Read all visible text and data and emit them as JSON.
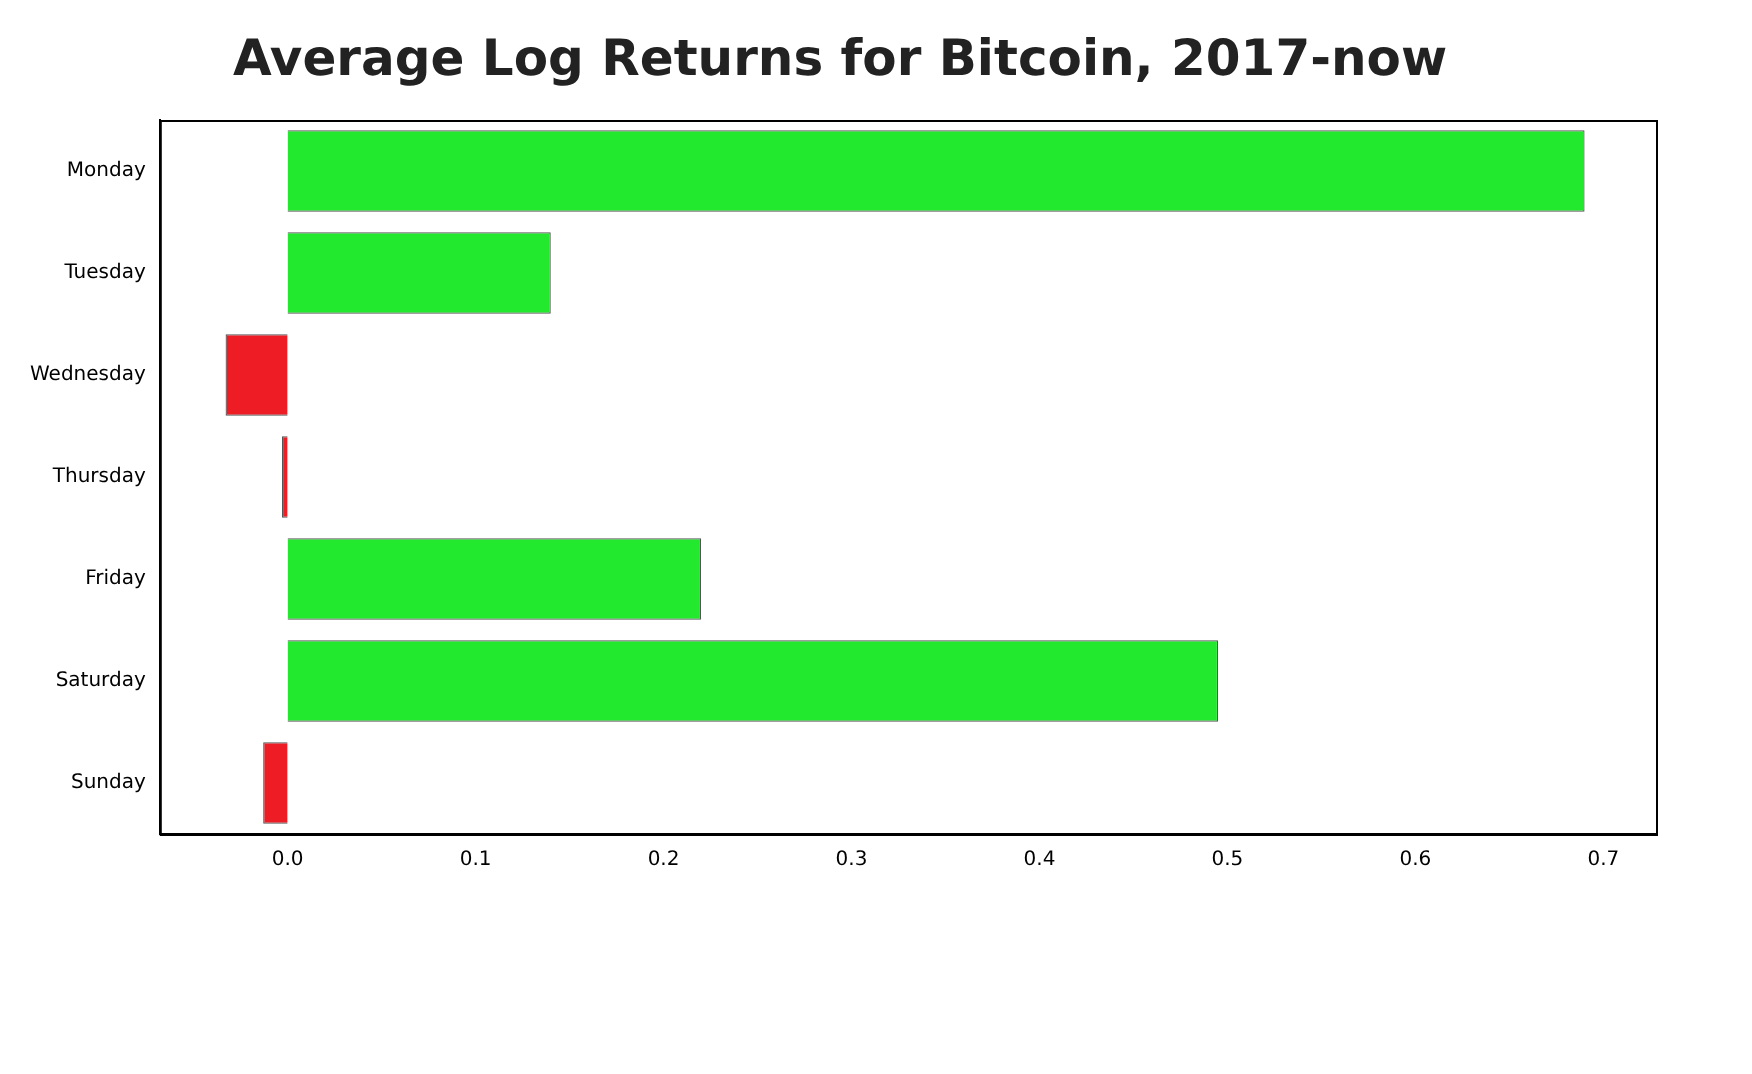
{
  "chart_data": {
    "type": "bar",
    "orientation": "horizontal",
    "title": "Average Log Returns for Bitcoin, 2017-now",
    "categories": [
      "Monday",
      "Tuesday",
      "Wednesday",
      "Thursday",
      "Friday",
      "Saturday",
      "Sunday"
    ],
    "values": [
      0.69,
      0.14,
      -0.033,
      -0.003,
      0.22,
      0.495,
      -0.013
    ],
    "colors": [
      "#22e82e",
      "#22e82e",
      "#ee1c25",
      "#ee1c25",
      "#22e82e",
      "#22e82e",
      "#ee1c25"
    ],
    "xlim": [
      -0.068,
      0.728
    ],
    "xticks": [
      {
        "value": 0,
        "label": "0.0"
      },
      0.1,
      0.2,
      0.3,
      0.4,
      0.5,
      0.6,
      0.7
    ],
    "grid": false,
    "legend": false
  }
}
